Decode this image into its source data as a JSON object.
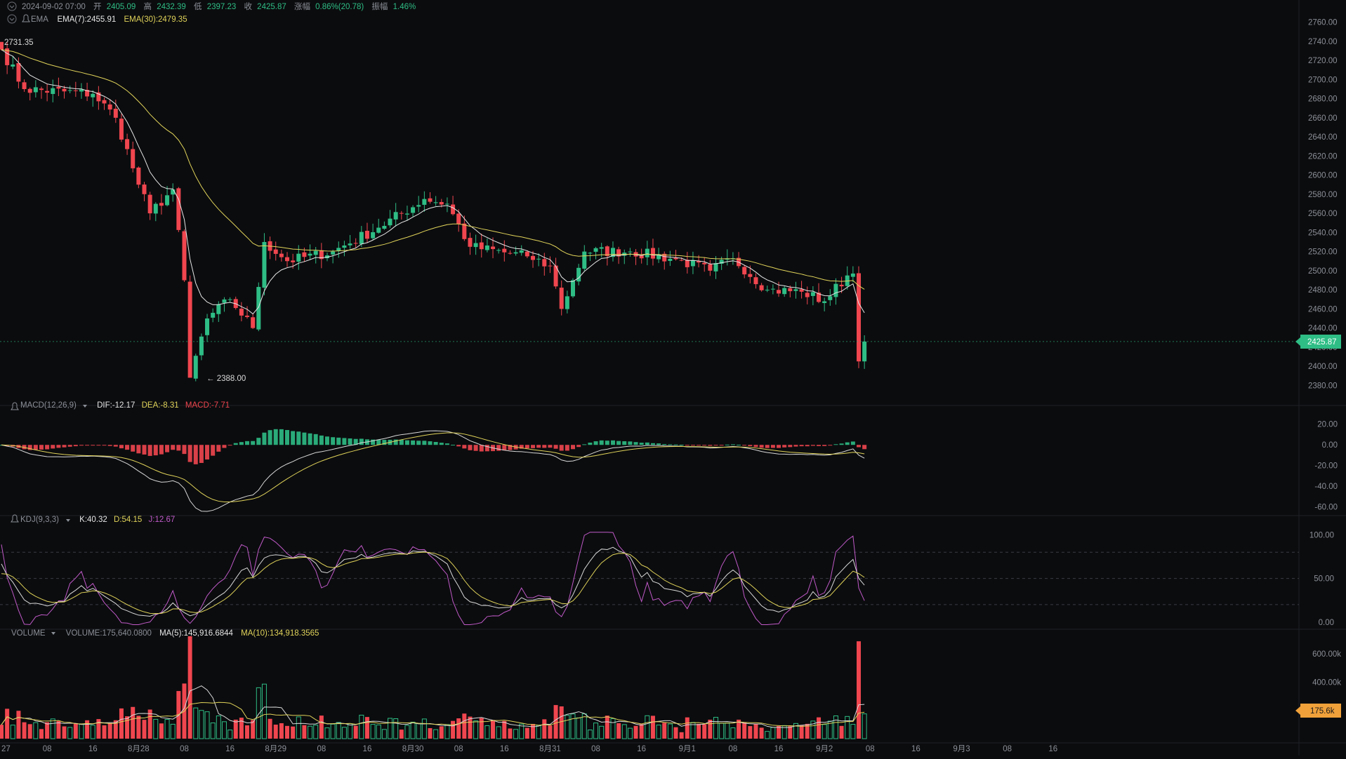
{
  "header": {
    "datetime": "2024-09-02 07:00",
    "open_label": "开",
    "open_value": "2405.09",
    "high_label": "高",
    "high_value": "2432.39",
    "low_label": "低",
    "low_value": "2397.23",
    "close_label": "收",
    "close_value": "2425.87",
    "change_label": "涨幅",
    "change_value": "0.86%(20.78)",
    "amp_label": "振幅",
    "amp_value": "1.46%"
  },
  "ema_legend": {
    "name": "EMA",
    "ema7": "EMA(7):2455.91",
    "ema30": "EMA(30):2479.35"
  },
  "price_panel": {
    "high_marker": "2731.35",
    "low_marker": "← 2388.00",
    "last_price": "2425.87",
    "axis_ticks": [
      "2760.00",
      "2740.00",
      "2720.00",
      "2700.00",
      "2680.00",
      "2660.00",
      "2640.00",
      "2620.00",
      "2600.00",
      "2580.00",
      "2560.00",
      "2540.00",
      "2520.00",
      "2500.00",
      "2480.00",
      "2460.00",
      "2440.00",
      "2420.00",
      "2400.00",
      "2380.00"
    ]
  },
  "macd_legend": {
    "name": "MACD(12,26,9)",
    "dif": "DIF:-12.17",
    "dea": "DEA:-8.31",
    "macd": "MACD:-7.71"
  },
  "macd_axis": [
    "20.00",
    "0.00",
    "-20.00",
    "-40.00",
    "-60.00"
  ],
  "kdj_legend": {
    "name": "KDJ(9,3,3)",
    "k": "K:40.32",
    "d": "D:54.15",
    "j": "J:12.67"
  },
  "kdj_axis": [
    "100.00",
    "50.00",
    "0.00"
  ],
  "volume_legend": {
    "name": "VOLUME",
    "volume": "VOLUME:175,640.0800",
    "ma5": "MA(5):145,916.6844",
    "ma10": "MA(10):134,918.3565"
  },
  "volume_axis": [
    "600.00k",
    "400.00k"
  ],
  "volume_last": "175.6k",
  "time_axis": [
    "27",
    "08",
    "16",
    "8月28",
    "08",
    "16",
    "8月29",
    "08",
    "16",
    "8月30",
    "08",
    "16",
    "8月31",
    "08",
    "16",
    "9月1",
    "08",
    "16",
    "9月2",
    "08",
    "16",
    "9月3",
    "08",
    "16"
  ],
  "colors": {
    "up": "#2ebd85",
    "down": "#f0464f",
    "ema7": "#e6e6e6",
    "ema30": "#e0d35a",
    "dea": "#e0d35a",
    "kdj_k": "#d8d8d8",
    "kdj_d": "#e0d35a",
    "kdj_j": "#c05ac8",
    "ma5": "#d8d8d8",
    "ma10": "#e0d35a",
    "last_volume_bg": "#f0a13a"
  },
  "chart_data": {
    "type": "candlestick",
    "interval": "1h",
    "x_range": [
      "2024-08-27 00:00",
      "2024-09-03 23:00"
    ],
    "price_ylim": [
      2370,
      2770
    ],
    "price_key_points": [
      {
        "time": "2024-08-27 00:00",
        "value": 2731.35
      },
      {
        "time": "2024-08-27 04:00",
        "value": 2690
      },
      {
        "time": "2024-08-27 16:00",
        "value": 2685
      },
      {
        "time": "2024-08-27 20:00",
        "value": 2660
      },
      {
        "time": "2024-08-28 00:00",
        "value": 2590
      },
      {
        "time": "2024-08-28 02:00",
        "value": 2560
      },
      {
        "time": "2024-08-28 06:00",
        "value": 2585
      },
      {
        "time": "2024-08-28 08:00",
        "value": 2490
      },
      {
        "time": "2024-08-28 09:00",
        "value": 2388.0
      },
      {
        "time": "2024-08-28 12:00",
        "value": 2450
      },
      {
        "time": "2024-08-28 16:00",
        "value": 2470
      },
      {
        "time": "2024-08-28 20:00",
        "value": 2440
      },
      {
        "time": "2024-08-28 22:00",
        "value": 2530
      },
      {
        "time": "2024-08-29 02:00",
        "value": 2510
      },
      {
        "time": "2024-08-29 10:00",
        "value": 2520
      },
      {
        "time": "2024-08-29 18:00",
        "value": 2545
      },
      {
        "time": "2024-08-30 02:00",
        "value": 2575
      },
      {
        "time": "2024-08-30 06:00",
        "value": 2570
      },
      {
        "time": "2024-08-30 10:00",
        "value": 2525
      },
      {
        "time": "2024-08-30 20:00",
        "value": 2515
      },
      {
        "time": "2024-08-31 00:00",
        "value": 2505
      },
      {
        "time": "2024-08-31 02:00",
        "value": 2460
      },
      {
        "time": "2024-08-31 04:00",
        "value": 2490
      },
      {
        "time": "2024-08-31 06:00",
        "value": 2520
      },
      {
        "time": "2024-08-31 14:00",
        "value": 2520
      },
      {
        "time": "2024-08-31 22:00",
        "value": 2512
      },
      {
        "time": "2024-09-01 04:00",
        "value": 2500
      },
      {
        "time": "2024-09-01 08:00",
        "value": 2513
      },
      {
        "time": "2024-09-01 14:00",
        "value": 2480
      },
      {
        "time": "2024-09-01 20:00",
        "value": 2478
      },
      {
        "time": "2024-09-02 00:00",
        "value": 2468
      },
      {
        "time": "2024-09-02 04:00",
        "value": 2495
      },
      {
        "time": "2024-09-02 05:00",
        "value": 2497
      },
      {
        "time": "2024-09-02 06:00",
        "value": 2405.09
      },
      {
        "time": "2024-09-02 07:00",
        "value": 2425.87
      }
    ],
    "last_candle": {
      "time": "2024-09-02 07:00",
      "open": 2405.09,
      "high": 2432.39,
      "low": 2397.23,
      "close": 2425.87
    },
    "macd_ylim": [
      -65,
      30
    ],
    "kdj_ylim": [
      -5,
      110
    ],
    "volume_ylim": [
      0,
      700000
    ]
  }
}
